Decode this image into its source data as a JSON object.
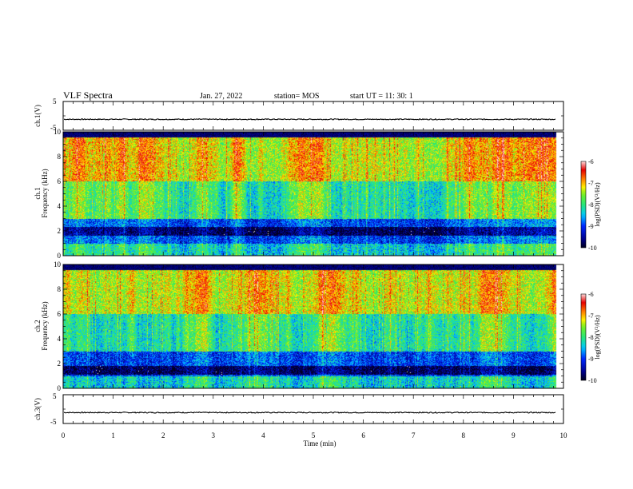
{
  "header": {
    "title": "VLF Spectra",
    "date": "Jan. 27, 2022",
    "station": "station= MOS",
    "start_ut": "start UT =  11: 30: 1"
  },
  "chart_data": [
    {
      "id": "ch1-waveform",
      "type": "line",
      "ylabel": "ch.1(V)",
      "ylim": [
        -5,
        5
      ],
      "yticks": [
        "5",
        "-5"
      ],
      "xlim": [
        0,
        10
      ],
      "series": [
        {
          "values_description_level": -1.2
        }
      ]
    },
    {
      "id": "ch1-spectrogram",
      "type": "heatmap",
      "ylabel_top": "ch.1",
      "ylabel": "Frequency (kHz)",
      "ylim": [
        0,
        10
      ],
      "yticks": [
        "0",
        "2",
        "4",
        "6",
        "8",
        "10"
      ],
      "xlim": [
        0,
        10
      ],
      "data_end_min": 9.85,
      "colorbar": {
        "label": "log(PSD)(V²/Hz)",
        "range": [
          -10,
          -6
        ],
        "ticks": [
          "-6",
          "-7",
          "-8",
          "-9",
          "-10"
        ]
      }
    },
    {
      "id": "ch2-spectrogram",
      "type": "heatmap",
      "ylabel_top": "ch.2",
      "ylabel": "Frequency (kHz)",
      "ylim": [
        0,
        10
      ],
      "yticks": [
        "0",
        "2",
        "4",
        "6",
        "8",
        "10"
      ],
      "xlim": [
        0,
        10
      ],
      "data_end_min": 9.85,
      "colorbar": {
        "label": "log(PSD)(V²/Hz)",
        "range": [
          -10,
          -6
        ],
        "ticks": [
          "-6",
          "-7",
          "-8",
          "-9",
          "-10"
        ]
      }
    },
    {
      "id": "ch3-waveform",
      "type": "line",
      "ylabel": "ch.3(V)",
      "ylim": [
        -5,
        5
      ],
      "yticks": [
        "5",
        "-5"
      ],
      "xlim": [
        0,
        10
      ],
      "xlabel": "Time (min)",
      "xticks": [
        "0",
        "1",
        "2",
        "3",
        "4",
        "5",
        "6",
        "7",
        "8",
        "9",
        "10"
      ]
    }
  ]
}
